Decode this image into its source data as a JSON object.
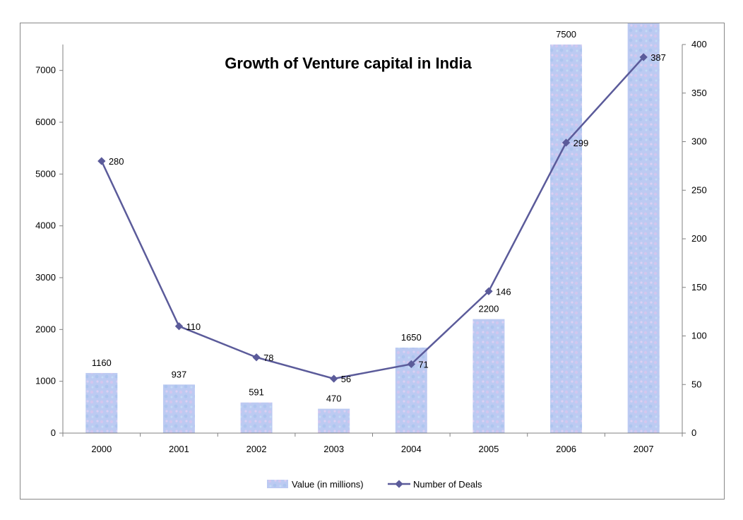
{
  "chart_data": {
    "type": "bar",
    "title": "Growth of Venture capital in India",
    "categories": [
      "2000",
      "2001",
      "2002",
      "2003",
      "2004",
      "2005",
      "2006",
      "2007"
    ],
    "series": [
      {
        "name": "Value (in millions)",
        "type": "bar",
        "axis": "left",
        "values": [
          1160,
          937,
          591,
          470,
          1650,
          2200,
          7500,
          8000
        ],
        "labels": [
          "1160",
          "937",
          "591",
          "470",
          "1650",
          "2200",
          "7500",
          null
        ],
        "color": "#b9c8f0"
      },
      {
        "name": "Number of Deals",
        "type": "line",
        "axis": "right",
        "values": [
          280,
          110,
          78,
          56,
          71,
          146,
          299,
          387
        ],
        "labels": [
          "280",
          "110",
          "78",
          "56",
          "71",
          "146",
          "299",
          "387"
        ],
        "color": "#5b5b9a"
      }
    ],
    "y_left": {
      "ylim": [
        0,
        7500
      ],
      "ticks": [
        0,
        1000,
        2000,
        3000,
        4000,
        5000,
        6000,
        7000
      ]
    },
    "y_right": {
      "ylim": [
        0,
        400
      ],
      "ticks": [
        0,
        50,
        100,
        150,
        200,
        250,
        300,
        350,
        400
      ]
    },
    "legend": {
      "position": "bottom"
    },
    "grid": false
  }
}
